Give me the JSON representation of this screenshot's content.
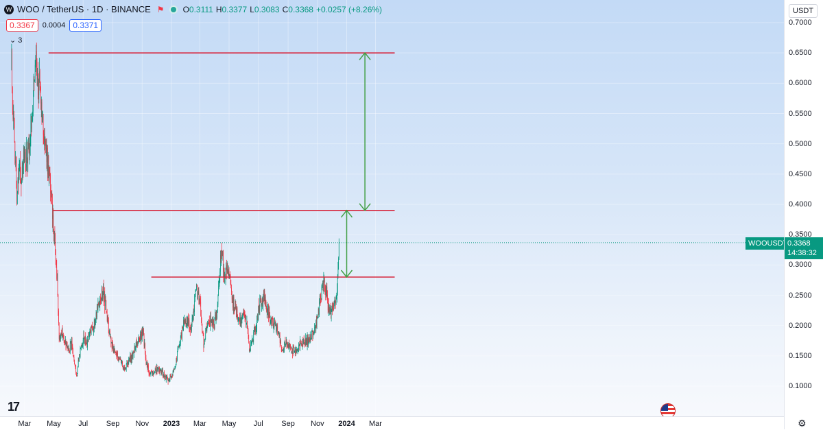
{
  "legend": {
    "logo": "W",
    "title": "WOO / TetherUS · 1D · BINANCE",
    "ohlc": [
      {
        "k": "O",
        "v": "0.3111"
      },
      {
        "k": "H",
        "v": "0.3377"
      },
      {
        "k": "L",
        "v": "0.3083"
      },
      {
        "k": "C",
        "v": "0.3368"
      }
    ],
    "change": "+0.0257 (+8.26%)",
    "sell_price": "0.3367",
    "spread": "0.0004",
    "buy_price": "0.3371",
    "indicators_count": "3"
  },
  "currency": "USDT",
  "last_price": {
    "ticker": "WOOUSDT",
    "price": "0.3368",
    "countdown": "14:38:32"
  },
  "colors": {
    "up": "#089981",
    "down": "#f23645",
    "level_line": "#d7263d",
    "arrow": "#43a047"
  },
  "chart_data": {
    "type": "candlestick",
    "symbol": "WOO / TetherUS",
    "interval": "1D",
    "exchange": "BINANCE",
    "ylim": [
      0.05,
      0.71
    ],
    "y_ticks": [
      "0.1000",
      "0.1500",
      "0.2000",
      "0.2500",
      "0.3000",
      "0.3500",
      "0.4000",
      "0.4500",
      "0.5000",
      "0.5500",
      "0.6000",
      "0.6500",
      "0.7000"
    ],
    "x_ticks": [
      {
        "label": "Mar",
        "date": "2022-03-01"
      },
      {
        "label": "May",
        "date": "2022-05-01"
      },
      {
        "label": "Jul",
        "date": "2022-07-01"
      },
      {
        "label": "Sep",
        "date": "2022-09-01"
      },
      {
        "label": "Nov",
        "date": "2022-11-01"
      },
      {
        "label": "2023",
        "date": "2023-01-01",
        "bold": true
      },
      {
        "label": "Mar",
        "date": "2023-03-01"
      },
      {
        "label": "May",
        "date": "2023-05-01"
      },
      {
        "label": "Jul",
        "date": "2023-07-01"
      },
      {
        "label": "Sep",
        "date": "2023-09-01"
      },
      {
        "label": "Nov",
        "date": "2023-11-01"
      },
      {
        "label": "2024",
        "date": "2024-01-01",
        "bold": true
      },
      {
        "label": "Mar",
        "date": "2024-03-01"
      }
    ],
    "price_path": [
      [
        "2022-02-01",
        0.66
      ],
      [
        "2022-02-05",
        0.55
      ],
      [
        "2022-02-09",
        0.48
      ],
      [
        "2022-02-13",
        0.42
      ],
      [
        "2022-02-18",
        0.47
      ],
      [
        "2022-02-23",
        0.44
      ],
      [
        "2022-03-01",
        0.49
      ],
      [
        "2022-03-07",
        0.47
      ],
      [
        "2022-03-13",
        0.52
      ],
      [
        "2022-03-19",
        0.58
      ],
      [
        "2022-03-25",
        0.63
      ],
      [
        "2022-03-29",
        0.6
      ],
      [
        "2022-04-03",
        0.59
      ],
      [
        "2022-04-08",
        0.53
      ],
      [
        "2022-04-13",
        0.5
      ],
      [
        "2022-04-19",
        0.46
      ],
      [
        "2022-04-24",
        0.43
      ],
      [
        "2022-04-29",
        0.37
      ],
      [
        "2022-05-04",
        0.33
      ],
      [
        "2022-05-09",
        0.26
      ],
      [
        "2022-05-12",
        0.18
      ],
      [
        "2022-05-18",
        0.19
      ],
      [
        "2022-05-24",
        0.17
      ],
      [
        "2022-06-01",
        0.16
      ],
      [
        "2022-06-07",
        0.17
      ],
      [
        "2022-06-13",
        0.13
      ],
      [
        "2022-06-18",
        0.12
      ],
      [
        "2022-06-25",
        0.16
      ],
      [
        "2022-07-02",
        0.18
      ],
      [
        "2022-07-09",
        0.17
      ],
      [
        "2022-07-16",
        0.19
      ],
      [
        "2022-07-23",
        0.2
      ],
      [
        "2022-07-31",
        0.23
      ],
      [
        "2022-08-06",
        0.24
      ],
      [
        "2022-08-12",
        0.26
      ],
      [
        "2022-08-19",
        0.22
      ],
      [
        "2022-08-26",
        0.18
      ],
      [
        "2022-09-02",
        0.16
      ],
      [
        "2022-09-09",
        0.15
      ],
      [
        "2022-09-16",
        0.14
      ],
      [
        "2022-09-25",
        0.13
      ],
      [
        "2022-10-03",
        0.14
      ],
      [
        "2022-10-12",
        0.15
      ],
      [
        "2022-10-21",
        0.17
      ],
      [
        "2022-10-28",
        0.18
      ],
      [
        "2022-11-03",
        0.19
      ],
      [
        "2022-11-09",
        0.14
      ],
      [
        "2022-11-16",
        0.12
      ],
      [
        "2022-11-25",
        0.12
      ],
      [
        "2022-12-05",
        0.13
      ],
      [
        "2022-12-15",
        0.12
      ],
      [
        "2022-12-25",
        0.11
      ],
      [
        "2023-01-03",
        0.12
      ],
      [
        "2023-01-10",
        0.14
      ],
      [
        "2023-01-18",
        0.17
      ],
      [
        "2023-01-26",
        0.2
      ],
      [
        "2023-02-03",
        0.21
      ],
      [
        "2023-02-10",
        0.19
      ],
      [
        "2023-02-17",
        0.23
      ],
      [
        "2023-02-22",
        0.26
      ],
      [
        "2023-03-01",
        0.24
      ],
      [
        "2023-03-09",
        0.17
      ],
      [
        "2023-03-16",
        0.2
      ],
      [
        "2023-03-24",
        0.21
      ],
      [
        "2023-03-31",
        0.2
      ],
      [
        "2023-04-07",
        0.23
      ],
      [
        "2023-04-13",
        0.31
      ],
      [
        "2023-04-17",
        0.32
      ],
      [
        "2023-04-21",
        0.27
      ],
      [
        "2023-04-26",
        0.3
      ],
      [
        "2023-05-03",
        0.28
      ],
      [
        "2023-05-09",
        0.24
      ],
      [
        "2023-05-16",
        0.22
      ],
      [
        "2023-05-24",
        0.21
      ],
      [
        "2023-05-31",
        0.22
      ],
      [
        "2023-06-08",
        0.2
      ],
      [
        "2023-06-12",
        0.16
      ],
      [
        "2023-06-20",
        0.18
      ],
      [
        "2023-06-28",
        0.21
      ],
      [
        "2023-07-05",
        0.24
      ],
      [
        "2023-07-12",
        0.25
      ],
      [
        "2023-07-19",
        0.23
      ],
      [
        "2023-07-27",
        0.21
      ],
      [
        "2023-08-05",
        0.2
      ],
      [
        "2023-08-13",
        0.19
      ],
      [
        "2023-08-18",
        0.16
      ],
      [
        "2023-08-28",
        0.17
      ],
      [
        "2023-09-08",
        0.16
      ],
      [
        "2023-09-18",
        0.16
      ],
      [
        "2023-09-28",
        0.17
      ],
      [
        "2023-10-08",
        0.17
      ],
      [
        "2023-10-18",
        0.18
      ],
      [
        "2023-10-25",
        0.19
      ],
      [
        "2023-11-01",
        0.21
      ],
      [
        "2023-11-08",
        0.25
      ],
      [
        "2023-11-14",
        0.27
      ],
      [
        "2023-11-19",
        0.26
      ],
      [
        "2023-11-25",
        0.22
      ],
      [
        "2023-12-01",
        0.23
      ],
      [
        "2023-12-07",
        0.24
      ],
      [
        "2023-12-12",
        0.26
      ],
      [
        "2023-12-16",
        0.3368
      ]
    ],
    "horizontal_levels": [
      {
        "price": 0.65,
        "from": "2022-04-20",
        "to": "2024-04-10"
      },
      {
        "price": 0.39,
        "from": "2022-04-29",
        "to": "2024-04-10"
      },
      {
        "price": 0.28,
        "from": "2022-11-20",
        "to": "2024-04-10"
      }
    ],
    "arrows": [
      {
        "x": "2024-02-08",
        "from": 0.39,
        "to": 0.65
      },
      {
        "x": "2024-01-01",
        "from": 0.28,
        "to": 0.39
      }
    ],
    "last_price_line": 0.3368
  }
}
